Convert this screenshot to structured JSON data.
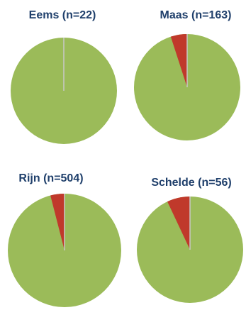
{
  "chart_data": [
    {
      "type": "pie",
      "title": "Eems (n=22)",
      "slices": [
        {
          "value": 100,
          "color": "#9bbb59"
        },
        {
          "value": 0,
          "color": "#c0392b"
        }
      ]
    },
    {
      "type": "pie",
      "title": "Maas (n=163)",
      "slices": [
        {
          "value": 95,
          "color": "#9bbb59"
        },
        {
          "value": 5,
          "color": "#c0392b"
        }
      ]
    },
    {
      "type": "pie",
      "title": "Rijn (n=504)",
      "slices": [
        {
          "value": 96,
          "color": "#9bbb59"
        },
        {
          "value": 4,
          "color": "#c0392b"
        }
      ]
    },
    {
      "type": "pie",
      "title": "Schelde (n=56)",
      "slices": [
        {
          "value": 93,
          "color": "#9bbb59"
        },
        {
          "value": 7,
          "color": "#c0392b"
        }
      ]
    }
  ]
}
